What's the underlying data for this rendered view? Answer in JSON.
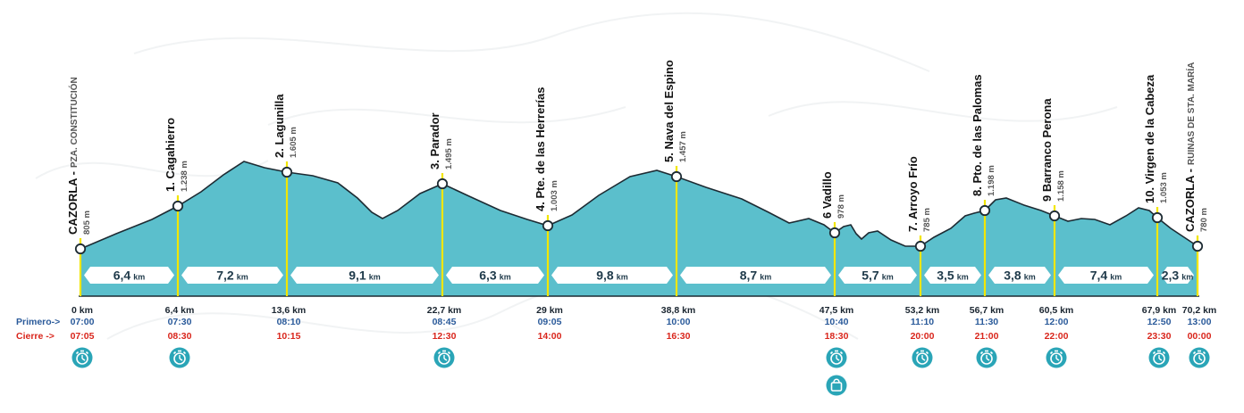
{
  "legend": {
    "primero_label": "Primero->",
    "cierre_label": "Cierre ->",
    "unit_km": "km",
    "unit_m": "m"
  },
  "colors": {
    "profile": "#5bbfcc",
    "stroke": "#1d2b33",
    "marker": "#f2e600",
    "first": "#2a5a9a",
    "cut": "#d9261c",
    "icon": "#2aa5b7"
  },
  "waypoints": [
    {
      "name": "CAZORLA -",
      "sub": "PZA. CONSTITUCIÓN",
      "altitude": "805 m",
      "km": 0,
      "km_label": "0 km",
      "primero": "07:00",
      "cierre": "07:05",
      "icons": [
        "timer-icon"
      ]
    },
    {
      "name": "1. Cagahierro",
      "sub": "",
      "altitude": "1.238 m",
      "km": 6.4,
      "km_label": "6,4 km",
      "primero": "07:30",
      "cierre": "08:30",
      "icons": [
        "timer-icon"
      ]
    },
    {
      "name": "2. Lagunilla",
      "sub": "",
      "altitude": "1.605 m",
      "km": 13.6,
      "km_label": "13,6 km",
      "primero": "08:10",
      "cierre": "10:15",
      "icons": []
    },
    {
      "name": "3. Parador",
      "sub": "",
      "altitude": "1.495 m",
      "km": 22.7,
      "km_label": "22,7 km",
      "primero": "08:45",
      "cierre": "12:30",
      "icons": [
        "timer-icon"
      ]
    },
    {
      "name": "4. Pte. de las Herrerías",
      "sub": "",
      "altitude": "1.003 m",
      "km": 29,
      "km_label": "29 km",
      "primero": "09:05",
      "cierre": "14:00",
      "icons": []
    },
    {
      "name": "5. Nava del Espino",
      "sub": "",
      "altitude": "1.457 m",
      "km": 38.8,
      "km_label": "38,8 km",
      "primero": "10:00",
      "cierre": "16:30",
      "icons": []
    },
    {
      "name": "6 Vadillo",
      "sub": "",
      "altitude": "978 m",
      "km": 47.5,
      "km_label": "47,5 km",
      "primero": "10:40",
      "cierre": "18:30",
      "icons": [
        "timer-icon",
        "bag-icon"
      ]
    },
    {
      "name": "7. Arroyo Frío",
      "sub": "",
      "altitude": "785 m",
      "km": 53.2,
      "km_label": "53,2 km",
      "primero": "11:10",
      "cierre": "20:00",
      "icons": [
        "timer-icon"
      ]
    },
    {
      "name": "8. Pto. de las Palomas",
      "sub": "",
      "altitude": "1.198 m",
      "km": 56.7,
      "km_label": "56,7 km",
      "primero": "11:30",
      "cierre": "21:00",
      "icons": [
        "timer-icon"
      ]
    },
    {
      "name": "9 Barranco Perona",
      "sub": "",
      "altitude": "1.158 m",
      "km": 60.5,
      "km_label": "60,5 km",
      "primero": "12:00",
      "cierre": "22:00",
      "icons": [
        "timer-icon"
      ]
    },
    {
      "name": "10. Virgen de la Cabeza",
      "sub": "",
      "altitude": "1.053 m",
      "km": 67.9,
      "km_label": "67,9 km",
      "primero": "12:50",
      "cierre": "23:30",
      "icons": [
        "timer-icon"
      ]
    },
    {
      "name": "CAZORLA -",
      "sub": "RUINAS DE STA. MARÍA",
      "altitude": "780 m",
      "km": 70.2,
      "km_label": "70,2 km",
      "primero": "13:00",
      "cierre": "00:00",
      "icons": [
        "timer-icon"
      ]
    }
  ],
  "segments": [
    {
      "value": "6,4"
    },
    {
      "value": "7,2"
    },
    {
      "value": "9,1"
    },
    {
      "value": "6,3"
    },
    {
      "value": "9,8"
    },
    {
      "value": "8,7"
    },
    {
      "value": "5,7"
    },
    {
      "value": "3,5"
    },
    {
      "value": "3,8"
    },
    {
      "value": "7,4"
    },
    {
      "value": "2,3"
    }
  ]
}
